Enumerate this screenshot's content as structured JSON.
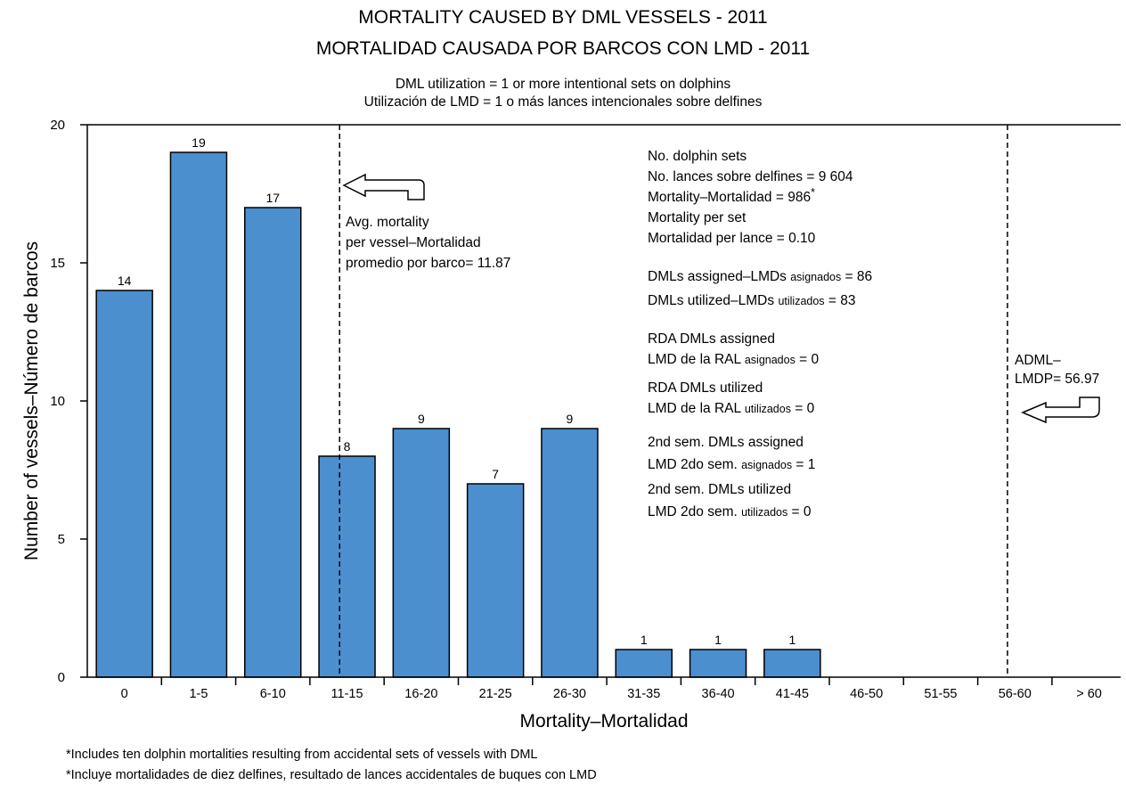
{
  "title_line1": "MORTALITY CAUSED BY DML VESSELS - 2011",
  "title_line2": "MORTALIDAD CAUSADA POR BARCOS CON LMD - 2011",
  "subtitle_line1": "DML utilization = 1 or more intentional sets on dolphins",
  "subtitle_line2": "Utilización de LMD = 1 o más lances intencionales sobre delfines",
  "footnote_line1": "*Includes ten dolphin mortalities resulting from accidental sets of vessels with DML",
  "footnote_line2": "*Incluye mortalidades de diez delfines, resultado de lances accidentales de buques con LMD",
  "chart_data": {
    "type": "bar",
    "xlabel": "Mortality–Mortalidad",
    "ylabel": "Number of vessels–Número de barcos",
    "ylim": [
      0,
      20
    ],
    "yticks": [
      0,
      5,
      10,
      15,
      20
    ],
    "categories": [
      "0",
      "1-5",
      "6-10",
      "11-15",
      "16-20",
      "21-25",
      "26-30",
      "31-35",
      "36-40",
      "41-45",
      "46-50",
      "51-55",
      "56-60",
      "> 60"
    ],
    "values": [
      14,
      19,
      17,
      8,
      9,
      7,
      9,
      1,
      1,
      1,
      0,
      0,
      0,
      0
    ],
    "data_labels": [
      "14",
      "19",
      "17",
      "8",
      "9",
      "7",
      "9",
      "1",
      "1",
      "1",
      "",
      "",
      "",
      ""
    ],
    "bar_color": "#4b8fcf",
    "grid": false,
    "avg_line_category_position": 3.4,
    "adml_line_category_position": 12.4,
    "annotations": {
      "avg_mortality": [
        "Avg. mortality",
        "per vessel–Mortalidad",
        "promedio por barco= 11.87"
      ],
      "adml": [
        "ADML–",
        "LMDP= 56.97"
      ],
      "stats": [
        "No. dolphin sets",
        "No. lances sobre delfines = 9 604",
        "Mortality–Mortalidad = 986",
        "*",
        "Mortality per set",
        "Mortalidad per lance = 0.10",
        "DMLs assigned–LMDs ",
        "asignados",
        " = 86",
        "DMLs utilized–LMDs ",
        "utilizados",
        " =  83",
        "RDA DMLs assigned",
        "LMD de la RAL ",
        "asignados",
        "  = 0",
        "RDA DMLs utilized",
        "LMD de la RAL ",
        "utilizados",
        " = 0",
        "2nd sem. DMLs assigned",
        "LMD 2do sem. ",
        "asignados",
        " = 1",
        "2nd sem. DMLs utilized",
        "LMD 2do sem. ",
        "utilizados",
        " =  0"
      ]
    }
  }
}
